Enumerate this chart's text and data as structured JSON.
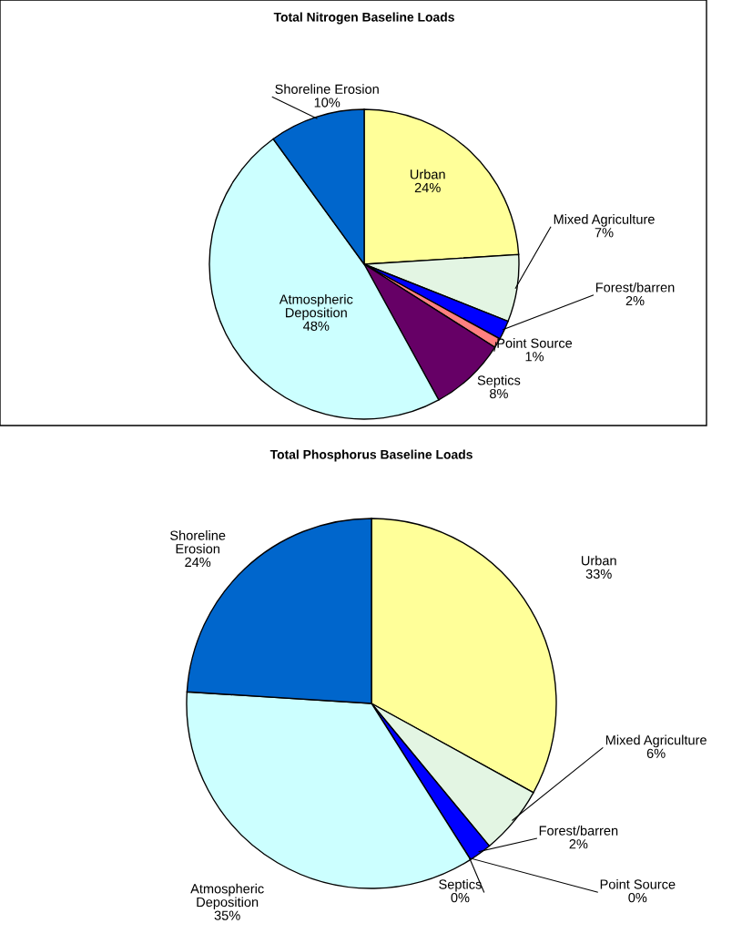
{
  "chart_data": [
    {
      "type": "pie",
      "title": "Total Nitrogen Baseline Loads",
      "categories": [
        "Urban",
        "Mixed Agriculture",
        "Forest/barren",
        "Point Source",
        "Septics",
        "Atmospheric Deposition",
        "Shoreline Erosion"
      ],
      "values": [
        24,
        7,
        2,
        1,
        8,
        48,
        10
      ],
      "value_labels": [
        "24%",
        "7%",
        "2%",
        "1%",
        "8%",
        "48%",
        "10%"
      ],
      "colors": [
        "#ffff99",
        "#e3f5e3",
        "#0000ff",
        "#ff8080",
        "#660066",
        "#ccffff",
        "#0066cc"
      ]
    },
    {
      "type": "pie",
      "title": "Total Phosphorus Baseline Loads",
      "categories": [
        "Urban",
        "Mixed Agriculture",
        "Forest/barren",
        "Point Source",
        "Septics",
        "Atmospheric Deposition",
        "Shoreline Erosion"
      ],
      "values": [
        33,
        6,
        2,
        0,
        0,
        35,
        24
      ],
      "value_labels": [
        "33%",
        "6%",
        "2%",
        "0%",
        "0%",
        "35%",
        "24%"
      ],
      "colors": [
        "#ffff99",
        "#e3f5e3",
        "#0000ff",
        "#ff8080",
        "#660066",
        "#ccffff",
        "#0066cc"
      ]
    }
  ]
}
